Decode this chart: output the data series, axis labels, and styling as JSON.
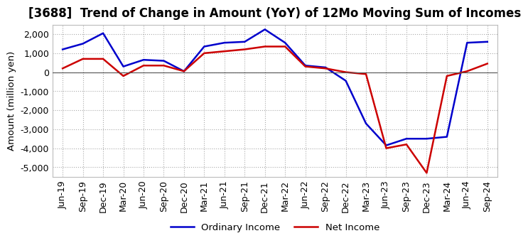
{
  "title": "[3688]  Trend of Change in Amount (YoY) of 12Mo Moving Sum of Incomes",
  "ylabel": "Amount (million yen)",
  "x_labels": [
    "Jun-19",
    "Sep-19",
    "Dec-19",
    "Mar-20",
    "Jun-20",
    "Sep-20",
    "Dec-20",
    "Mar-21",
    "Jun-21",
    "Sep-21",
    "Dec-21",
    "Mar-22",
    "Jun-22",
    "Sep-22",
    "Dec-22",
    "Mar-23",
    "Jun-23",
    "Sep-23",
    "Dec-23",
    "Mar-24",
    "Jun-24",
    "Sep-24"
  ],
  "ordinary_income": [
    1200,
    1500,
    2050,
    300,
    650,
    600,
    50,
    1350,
    1550,
    1600,
    2250,
    1550,
    350,
    250,
    -450,
    -2700,
    -3850,
    -3500,
    -3500,
    -3400,
    1550,
    1600
  ],
  "net_income": [
    200,
    700,
    700,
    -200,
    350,
    350,
    50,
    1000,
    1100,
    1200,
    1350,
    1350,
    300,
    200,
    0,
    -100,
    -4000,
    -3800,
    -5300,
    -200,
    50,
    450
  ],
  "ordinary_color": "#0000cc",
  "net_color": "#cc0000",
  "ylim": [
    -5500,
    2500
  ],
  "yticks": [
    -5000,
    -4000,
    -3000,
    -2000,
    -1000,
    0,
    1000,
    2000
  ],
  "background_color": "#ffffff",
  "grid_color": "#aaaaaa",
  "title_fontsize": 12,
  "label_fontsize": 9.5,
  "tick_fontsize": 9
}
